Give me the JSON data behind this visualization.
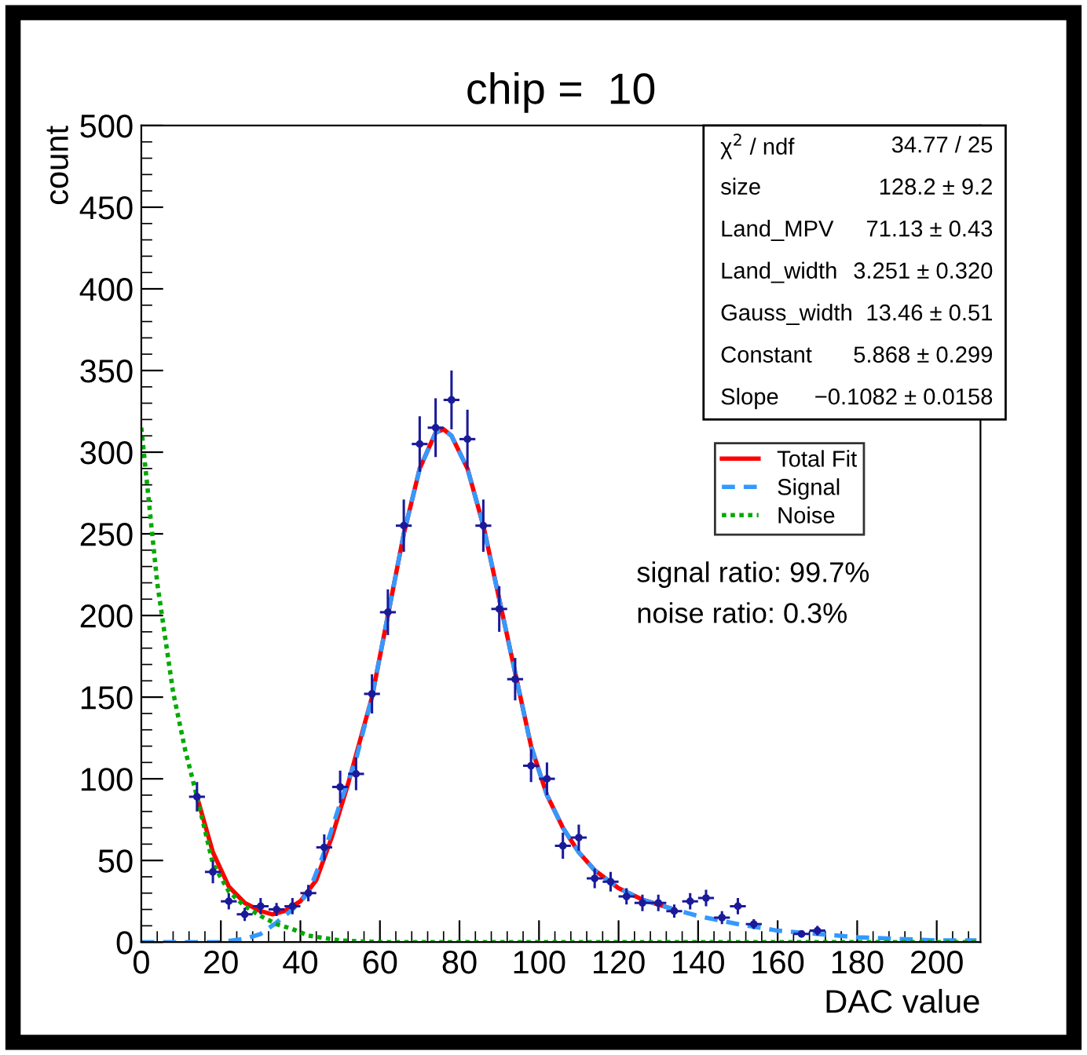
{
  "chart_data": {
    "type": "scatter",
    "title": "chip =  10",
    "xlabel": "DAC value",
    "ylabel": "count",
    "xlim": [
      0,
      211
    ],
    "ylim": [
      0,
      500
    ],
    "xticks": [
      0,
      20,
      40,
      60,
      80,
      100,
      120,
      140,
      160,
      180,
      200
    ],
    "yticks": [
      0,
      50,
      100,
      150,
      200,
      250,
      300,
      350,
      400,
      450,
      500
    ],
    "grid": false,
    "legend": "top right",
    "annotations": [
      "χ$^{2}$ / ndf",
      "34.77 / 25",
      "size",
      "128.2 ± 9.2",
      "Land_MPV",
      "71.13 ± 0.43",
      "Land_width",
      "3.251 ± 0.320",
      "Gauss_width",
      "13.46 ± 0.51",
      "Constant",
      "5.868 ± 0.299",
      "Slope",
      "−0.1082 ± 0.0158",
      "signal ratio: 99.7%",
      "noise ratio: 0.3%"
    ],
    "series": [
      {
        "type": "scatter",
        "color": "#1a1a9a",
        "x": [
          14,
          18,
          22,
          26,
          30,
          34,
          38,
          42,
          46,
          50,
          54,
          58,
          62,
          66,
          70,
          74,
          78,
          82,
          86,
          90,
          94,
          98,
          102,
          106,
          110,
          114,
          118,
          122,
          126,
          130,
          134,
          138,
          142,
          146,
          150,
          154,
          166,
          170
        ],
        "values": [
          89,
          43,
          25,
          17,
          22,
          20,
          22,
          30,
          58,
          95,
          103,
          152,
          202,
          255,
          305,
          315,
          332,
          308,
          255,
          204,
          161,
          108,
          100,
          59,
          64,
          39,
          37,
          28,
          24,
          24,
          19,
          25,
          27,
          15,
          22,
          11,
          5,
          7
        ],
        "errors": [
          9,
          7,
          5,
          4,
          5,
          4,
          5,
          5,
          8,
          10,
          10,
          12,
          14,
          16,
          17,
          18,
          18,
          18,
          16,
          14,
          13,
          10,
          10,
          8,
          8,
          6,
          6,
          5,
          5,
          5,
          4,
          5,
          5,
          4,
          5,
          3,
          2,
          3
        ],
        "xerrors": [
          2,
          2,
          2,
          2,
          2,
          2,
          2,
          2,
          2,
          2,
          2,
          2,
          2,
          2,
          2,
          2,
          2,
          2,
          2,
          2,
          2,
          2,
          2,
          2,
          2,
          2,
          2,
          2,
          2,
          2,
          2,
          2,
          2,
          2,
          2,
          2,
          2,
          2
        ]
      },
      {
        "type": "line",
        "name": "Total Fit",
        "color": "#ff0000",
        "line_style": "solid",
        "x": [
          14,
          18,
          22,
          26,
          30,
          33,
          36,
          40,
          44,
          48,
          52,
          58,
          62,
          66,
          70,
          74,
          76,
          78,
          82,
          86,
          90,
          94,
          98,
          102,
          106,
          110,
          114,
          120,
          126,
          134
        ],
        "values": [
          89,
          55,
          34,
          24,
          19,
          17,
          19,
          25,
          38,
          65,
          97,
          150,
          200,
          250,
          290,
          312,
          314,
          310,
          290,
          255,
          210,
          165,
          120,
          90,
          70,
          55,
          44,
          33,
          26,
          20
        ]
      },
      {
        "type": "line",
        "name": "Signal",
        "color": "#3399ff",
        "line_style": "dashed",
        "x": [
          0,
          20,
          26,
          30,
          34,
          38,
          42,
          46,
          50,
          54,
          58,
          62,
          66,
          70,
          74,
          76,
          78,
          82,
          86,
          90,
          94,
          98,
          102,
          106,
          110,
          114,
          120,
          126,
          134,
          140,
          150,
          160,
          170,
          180,
          190,
          200,
          210
        ],
        "values": [
          0,
          0,
          2,
          5,
          12,
          20,
          30,
          55,
          85,
          112,
          150,
          200,
          250,
          290,
          312,
          314,
          310,
          290,
          255,
          210,
          165,
          120,
          90,
          70,
          55,
          44,
          33,
          26,
          20,
          16,
          11,
          7,
          5,
          3,
          2,
          1,
          1
        ]
      },
      {
        "type": "line",
        "name": "Noise",
        "color": "#00aa00",
        "line_style": "dotted",
        "x": [
          0,
          4,
          8,
          11,
          14,
          18,
          22,
          26,
          30,
          34,
          38,
          42,
          50,
          60,
          210
        ],
        "values": [
          315,
          220,
          153,
          118,
          89,
          48,
          31,
          22,
          16,
          11,
          8,
          4,
          1,
          0,
          0
        ]
      }
    ]
  }
}
